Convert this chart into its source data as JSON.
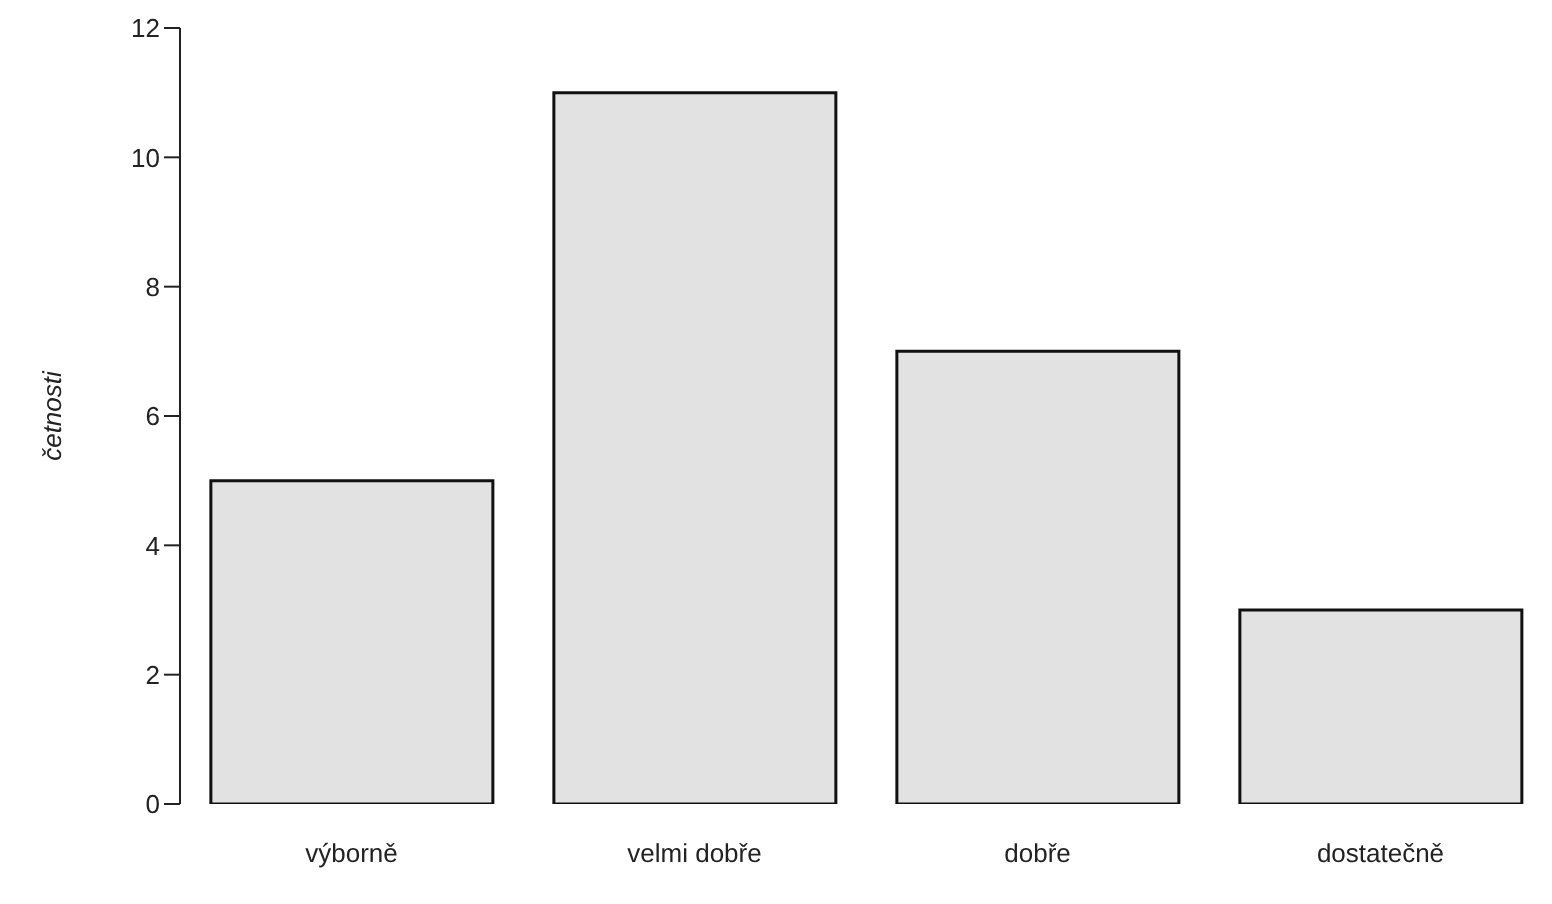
{
  "chart_data": {
    "type": "bar",
    "ylabel": "četnosti",
    "categories": [
      "výborně",
      "velmi dobře",
      "dobře",
      "dostatečně"
    ],
    "values": [
      5,
      11,
      7,
      3
    ],
    "color": "#e2e2e2",
    "ylim": [
      0,
      12
    ],
    "yticks": [
      0,
      2,
      4,
      6,
      8,
      10,
      12
    ]
  }
}
